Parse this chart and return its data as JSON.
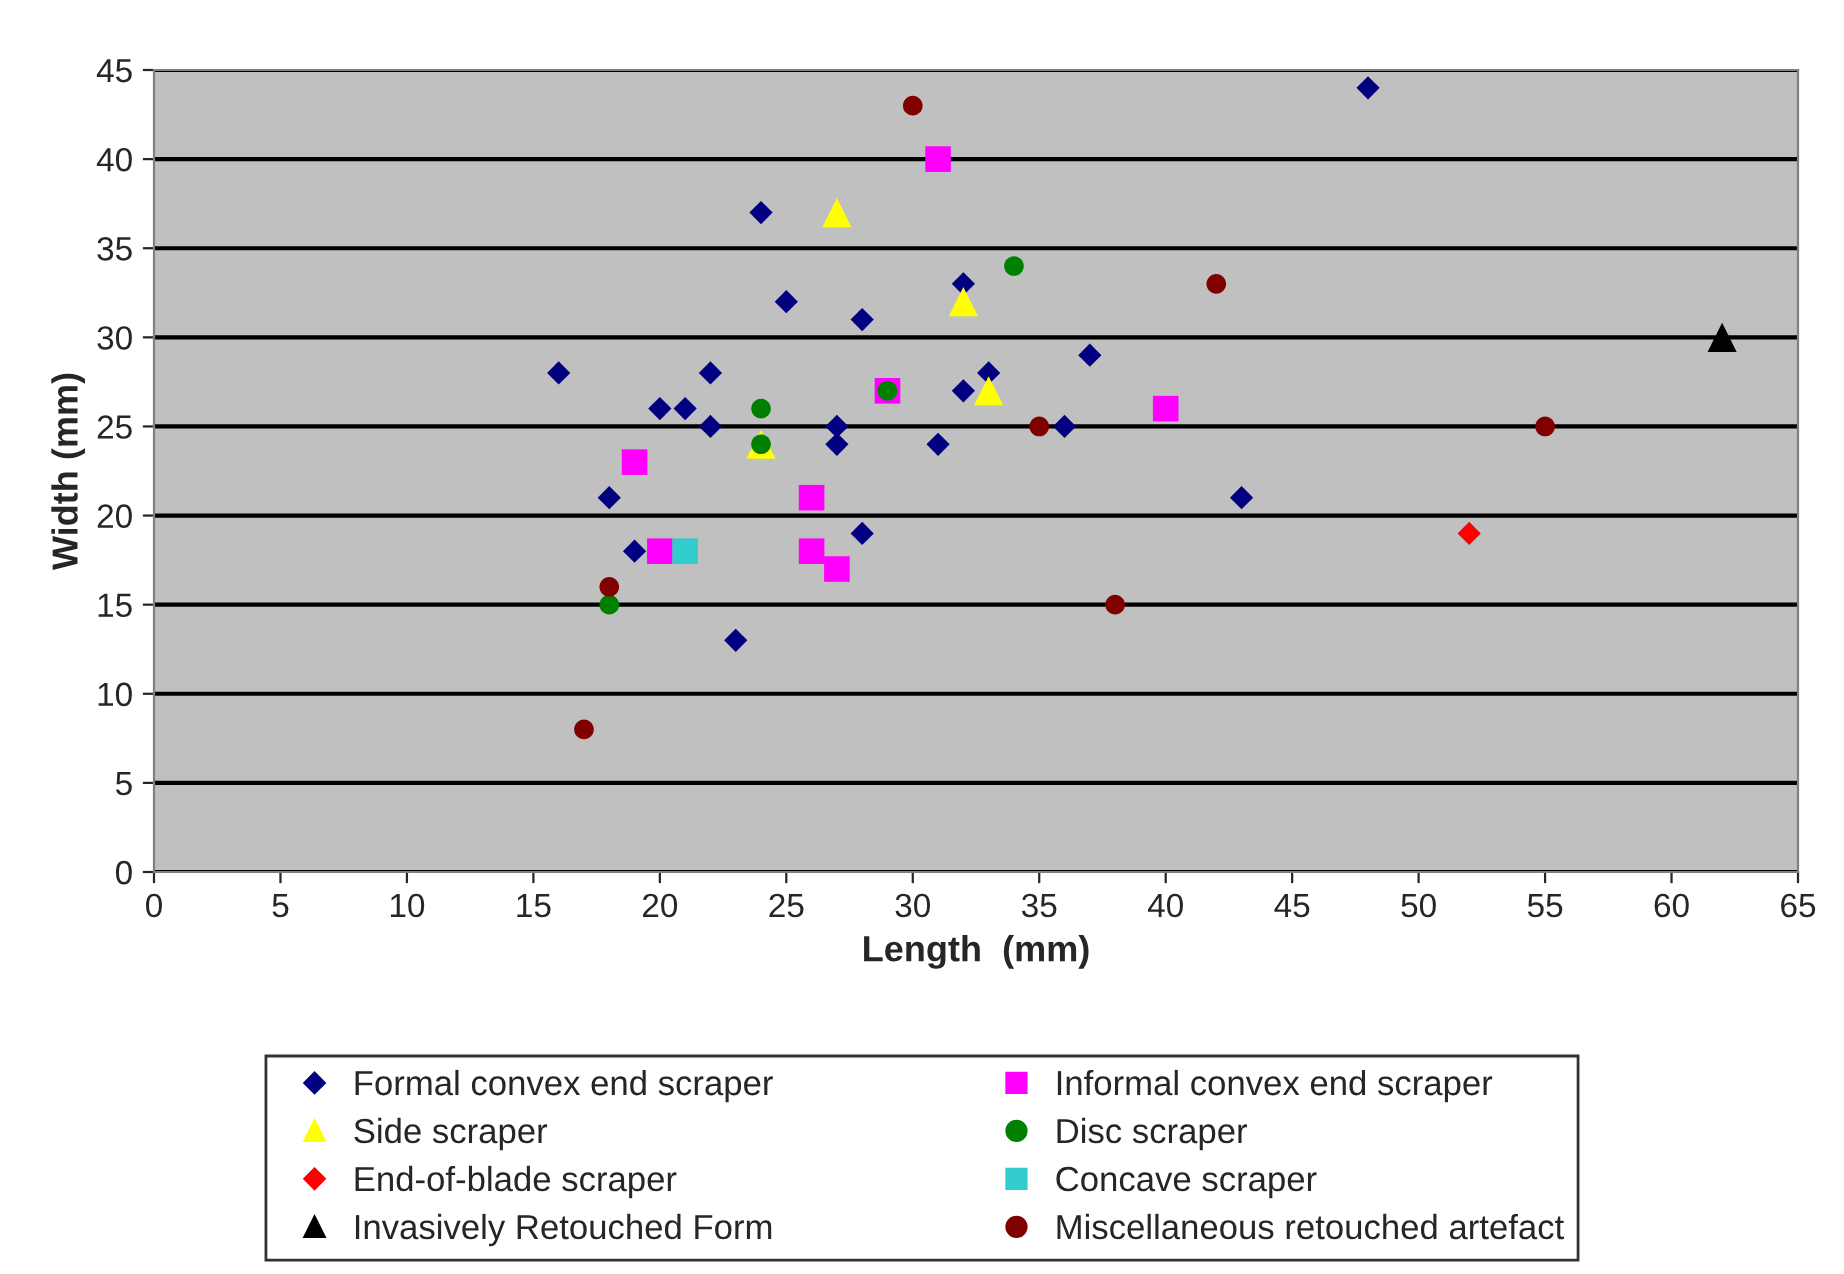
{
  "chart_data": {
    "type": "scatter",
    "xlabel": "Length  (mm)",
    "ylabel": "Width (mm)",
    "xlim": [
      0,
      65
    ],
    "xticks": [
      0,
      5,
      10,
      15,
      20,
      25,
      30,
      35,
      40,
      45,
      50,
      55,
      60,
      65
    ],
    "ylim": [
      0,
      45
    ],
    "yticks": [
      0,
      5,
      10,
      15,
      20,
      25,
      30,
      35,
      40,
      45
    ],
    "grid": "y",
    "legend": "bottom",
    "series": [
      {
        "name": "Formal convex end scraper",
        "color": "#000080",
        "marker": "diamond",
        "x": [
          16,
          18,
          19,
          20,
          21,
          22,
          22,
          23,
          24,
          25,
          27,
          27,
          28,
          28,
          31,
          32,
          32,
          33,
          36,
          37,
          43,
          48
        ],
        "values": [
          28,
          21,
          18,
          26,
          26,
          28,
          25,
          13,
          37,
          32,
          25,
          24,
          31,
          19,
          24,
          33,
          27,
          28,
          25,
          29,
          21,
          44
        ]
      },
      {
        "name": "Informal convex end scraper",
        "color": "#ff00ff",
        "marker": "square",
        "x": [
          19,
          20,
          26,
          26,
          27,
          29,
          31,
          40
        ],
        "values": [
          23,
          18,
          21,
          18,
          17,
          27,
          40,
          26
        ]
      },
      {
        "name": "Side scraper",
        "color": "#ffff00",
        "marker": "triangle",
        "x": [
          24,
          27,
          32,
          33
        ],
        "values": [
          24,
          37,
          32,
          27
        ]
      },
      {
        "name": "Disc scraper",
        "color": "#008000",
        "marker": "circle",
        "x": [
          18,
          24,
          24,
          29,
          34
        ],
        "values": [
          15,
          26,
          24,
          27,
          34
        ]
      },
      {
        "name": "End-of-blade scraper",
        "color": "#ff0000",
        "marker": "diamond",
        "x": [
          52
        ],
        "values": [
          19
        ]
      },
      {
        "name": "Concave scraper",
        "color": "#33cccc",
        "marker": "square",
        "x": [
          21
        ],
        "values": [
          18
        ]
      },
      {
        "name": "Invasively Retouched Form",
        "color": "#000000",
        "marker": "triangle",
        "x": [
          62
        ],
        "values": [
          30
        ]
      },
      {
        "name": "Miscellaneous retouched artefact",
        "color": "#800000",
        "marker": "circle",
        "x": [
          17,
          18,
          30,
          35,
          38,
          42,
          55
        ],
        "values": [
          8,
          16,
          43,
          25,
          15,
          33,
          25
        ]
      }
    ]
  }
}
